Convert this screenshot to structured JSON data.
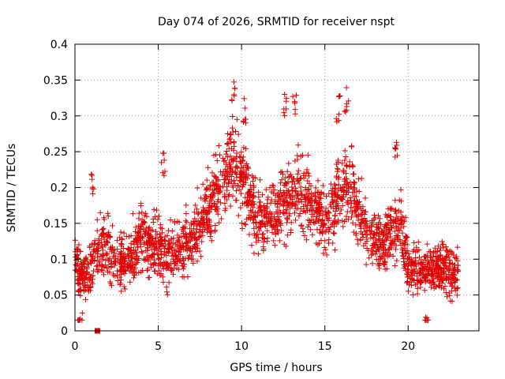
{
  "chart_data": {
    "type": "scatter",
    "title": "Day 074 of 2026, SRMTID for receiver nspt",
    "xlabel": "GPS time / hours",
    "ylabel": "SRMTID / TECUs",
    "xlim": [
      0,
      24.25
    ],
    "ylim": [
      0,
      0.4
    ],
    "x_ticks": [
      "0",
      "5",
      "10",
      "15",
      "20"
    ],
    "x_tick_values": [
      0,
      5,
      10,
      15,
      20
    ],
    "y_ticks": [
      "0",
      "0.05",
      "0.1",
      "0.15",
      "0.2",
      "0.25",
      "0.3",
      "0.35",
      "0.4"
    ],
    "y_tick_values": [
      0,
      0.05,
      0.1,
      0.15,
      0.2,
      0.25,
      0.3,
      0.35,
      0.4
    ],
    "grid": true,
    "marker": "plus",
    "series_color": "#e00000",
    "series": [
      {
        "name": "SRMTID",
        "trend": [
          [
            0.0,
            0.1
          ],
          [
            0.5,
            0.07
          ],
          [
            1.0,
            0.09
          ],
          [
            1.5,
            0.12
          ],
          [
            2.0,
            0.11
          ],
          [
            2.5,
            0.09
          ],
          [
            3.0,
            0.1
          ],
          [
            3.5,
            0.11
          ],
          [
            4.0,
            0.13
          ],
          [
            4.5,
            0.12
          ],
          [
            5.0,
            0.12
          ],
          [
            5.5,
            0.1
          ],
          [
            6.0,
            0.11
          ],
          [
            6.5,
            0.12
          ],
          [
            7.0,
            0.13
          ],
          [
            7.5,
            0.15
          ],
          [
            8.0,
            0.17
          ],
          [
            8.5,
            0.2
          ],
          [
            9.0,
            0.22
          ],
          [
            9.5,
            0.24
          ],
          [
            10.0,
            0.22
          ],
          [
            10.5,
            0.18
          ],
          [
            11.0,
            0.16
          ],
          [
            11.5,
            0.15
          ],
          [
            12.0,
            0.16
          ],
          [
            12.5,
            0.18
          ],
          [
            13.0,
            0.19
          ],
          [
            13.5,
            0.2
          ],
          [
            14.0,
            0.19
          ],
          [
            14.5,
            0.17
          ],
          [
            15.0,
            0.15
          ],
          [
            15.5,
            0.17
          ],
          [
            16.0,
            0.2
          ],
          [
            16.5,
            0.21
          ],
          [
            17.0,
            0.17
          ],
          [
            17.5,
            0.14
          ],
          [
            18.0,
            0.13
          ],
          [
            18.5,
            0.12
          ],
          [
            19.0,
            0.14
          ],
          [
            19.5,
            0.15
          ],
          [
            20.0,
            0.09
          ],
          [
            20.5,
            0.09
          ],
          [
            21.0,
            0.08
          ],
          [
            21.5,
            0.09
          ],
          [
            22.0,
            0.09
          ],
          [
            22.5,
            0.08
          ],
          [
            23.0,
            0.08
          ]
        ],
        "spread": 0.045,
        "n_points": 2400
      }
    ],
    "peaks": [
      {
        "x": 9.5,
        "y": 0.355
      },
      {
        "x": 10.2,
        "y": 0.325
      },
      {
        "x": 12.6,
        "y": 0.335
      },
      {
        "x": 13.2,
        "y": 0.33
      },
      {
        "x": 16.3,
        "y": 0.34
      },
      {
        "x": 15.8,
        "y": 0.33
      },
      {
        "x": 19.3,
        "y": 0.27
      },
      {
        "x": 5.3,
        "y": 0.25
      },
      {
        "x": 1.1,
        "y": 0.225
      },
      {
        "x": 0.3,
        "y": 0.02
      },
      {
        "x": 21.1,
        "y": 0.025
      }
    ],
    "special_marker": {
      "shape": "square",
      "x": 1.35,
      "y": 0
    }
  }
}
